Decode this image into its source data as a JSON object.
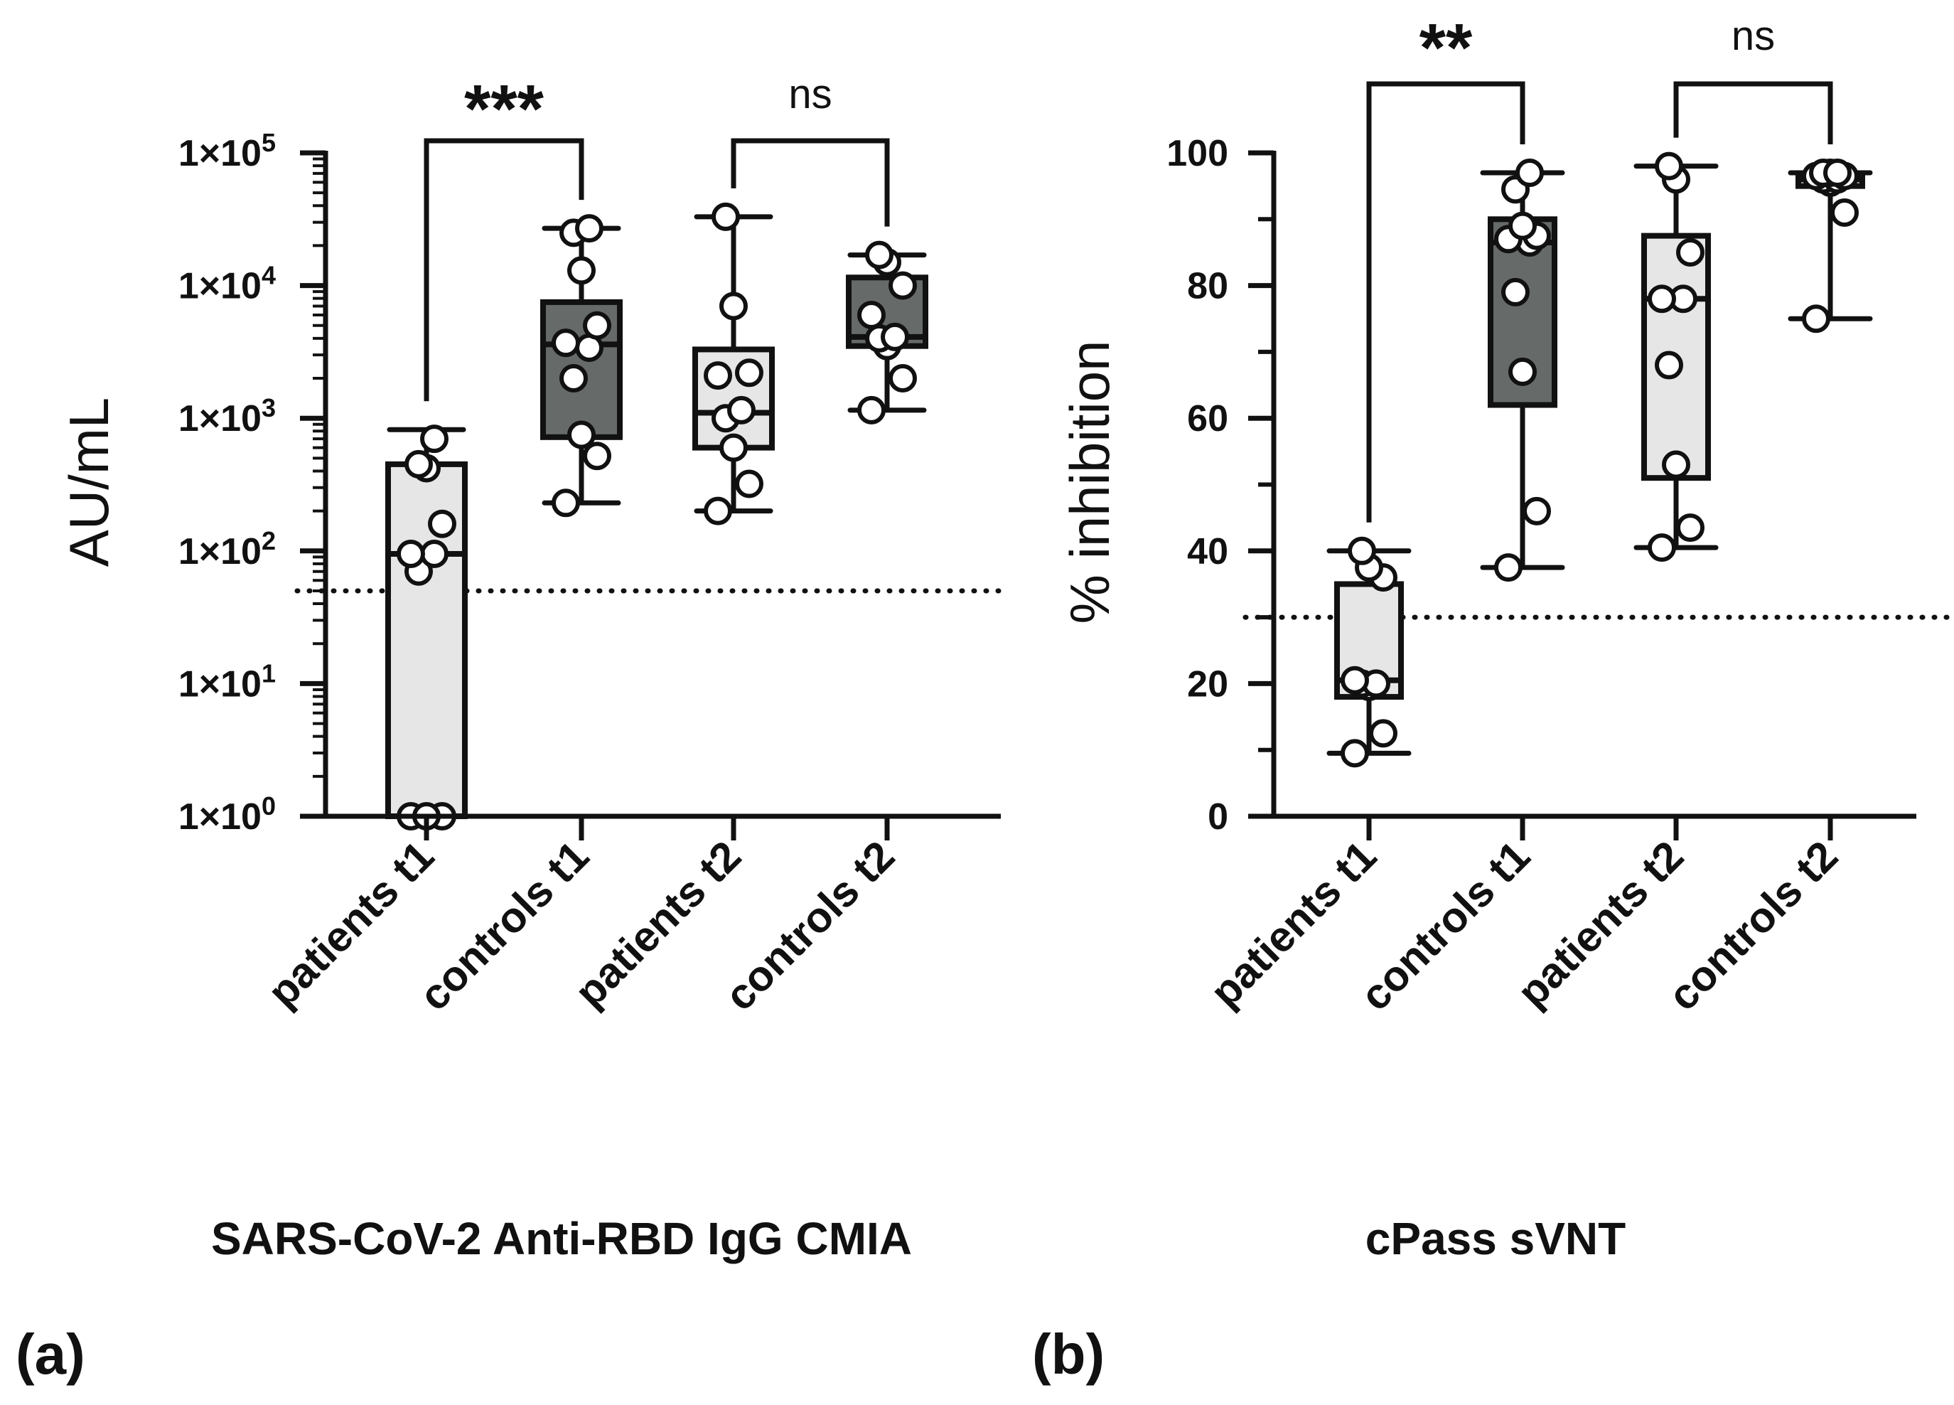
{
  "chart_data": [
    {
      "id": "a",
      "type": "box",
      "panel_label": "(a)",
      "title": "SARS-CoV-2 Anti-RBD IgG CMIA",
      "ylabel": "AU/mL",
      "yscale": "log",
      "ylim": [
        1,
        100000
      ],
      "yticks": [
        {
          "value": 1,
          "mantissa": "1×10",
          "exp": "0"
        },
        {
          "value": 10,
          "mantissa": "1×10",
          "exp": "1"
        },
        {
          "value": 100,
          "mantissa": "1×10",
          "exp": "2"
        },
        {
          "value": 1000,
          "mantissa": "1×10",
          "exp": "3"
        },
        {
          "value": 10000,
          "mantissa": "1×10",
          "exp": "4"
        },
        {
          "value": 100000,
          "mantissa": "1×10",
          "exp": "5"
        }
      ],
      "cutoff": 50,
      "categories": [
        "patients t1",
        "controls  t1",
        "patients t2",
        "controls t2"
      ],
      "fills": [
        "#e6e6e6",
        "#666a68",
        "#e6e6e6",
        "#666a68"
      ],
      "boxes": [
        {
          "min": 1,
          "q1": 1,
          "median": 95,
          "q3": 450,
          "max": 820,
          "points": [
            1,
            1,
            1,
            70,
            95,
            95,
            160,
            420,
            450,
            700
          ]
        },
        {
          "min": 230,
          "q1": 720,
          "median": 3600,
          "q3": 7500,
          "max": 27000,
          "points": [
            230,
            520,
            750,
            2000,
            3400,
            3700,
            5000,
            13000,
            25000,
            27000
          ]
        },
        {
          "min": 200,
          "q1": 600,
          "median": 1100,
          "q3": 3300,
          "max": 33000,
          "points": [
            200,
            320,
            600,
            1000,
            1150,
            2100,
            2200,
            7000,
            33000
          ]
        },
        {
          "min": 1150,
          "q1": 3500,
          "median": 4100,
          "q3": 11500,
          "max": 17000,
          "points": [
            1150,
            2000,
            3500,
            4000,
            4100,
            6000,
            10000,
            15000,
            17000
          ]
        }
      ],
      "comparisons": [
        {
          "from": 0,
          "to": 1,
          "label": "***"
        },
        {
          "from": 2,
          "to": 3,
          "label": "ns"
        }
      ]
    },
    {
      "id": "b",
      "type": "box",
      "panel_label": "(b)",
      "title": "cPass sVNT",
      "ylabel": "% inhibition",
      "yscale": "linear",
      "ylim": [
        0,
        100
      ],
      "yticks": [
        {
          "value": 0,
          "label": "0"
        },
        {
          "value": 20,
          "label": "20"
        },
        {
          "value": 40,
          "label": "40"
        },
        {
          "value": 60,
          "label": "60"
        },
        {
          "value": 80,
          "label": "80"
        },
        {
          "value": 100,
          "label": "100"
        }
      ],
      "minor_step": 10,
      "cutoff": 30,
      "categories": [
        "patients t1",
        "controls t1",
        "patients t2",
        "controls t2"
      ],
      "fills": [
        "#e6e6e6",
        "#666a68",
        "#e6e6e6",
        "#e6e6e6"
      ],
      "boxes": [
        {
          "min": 9.5,
          "q1": 18,
          "median": 20.5,
          "q3": 35,
          "max": 40,
          "points": [
            9.5,
            12.5,
            19.5,
            20,
            20,
            20.5,
            36,
            37.5,
            40
          ]
        },
        {
          "min": 37.5,
          "q1": 62,
          "median": 86.5,
          "q3": 90,
          "max": 97,
          "points": [
            37.5,
            46,
            67,
            79,
            86.5,
            87,
            87.5,
            89,
            94.5,
            97
          ]
        },
        {
          "min": 40.5,
          "q1": 51,
          "median": 78,
          "q3": 87.5,
          "max": 98,
          "points": [
            40.5,
            43.5,
            53,
            68,
            78,
            78,
            85,
            96,
            98
          ]
        },
        {
          "min": 75,
          "q1": 95,
          "median": 96,
          "q3": 96.5,
          "max": 97,
          "points": [
            75,
            91,
            95.5,
            96,
            96,
            96.5,
            96.5,
            97,
            97,
            97
          ]
        }
      ],
      "comparisons": [
        {
          "from": 0,
          "to": 1,
          "label": "**"
        },
        {
          "from": 2,
          "to": 3,
          "label": "ns"
        }
      ]
    }
  ]
}
